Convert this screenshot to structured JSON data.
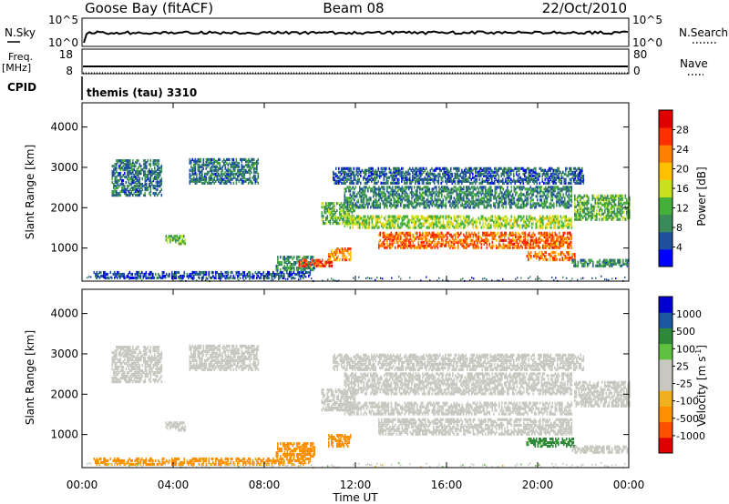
{
  "header": {
    "station": "Goose Bay (fitACF)",
    "beam": "Beam 08",
    "date": "22/Oct/2010",
    "cpid_label": "CPID",
    "cpid_value": "themis (tau) 3310"
  },
  "strip_labels": {
    "nsky": "N.Sky",
    "nsky_ticks": [
      "10^5",
      "10^0"
    ],
    "nsearch": "N.Search",
    "nsearch_ticks": [
      "10^5",
      "10^0"
    ],
    "freq": "Freq.",
    "freq_unit": "[MHz]",
    "freq_ticks": [
      "18",
      "8"
    ],
    "nave": "Nave",
    "nave_ticks": [
      "80",
      "0"
    ]
  },
  "colors": {
    "power_scale": [
      "#0000ff",
      "#2150a0",
      "#3a8a5a",
      "#44b03a",
      "#c8e020",
      "#ffc000",
      "#ff8000",
      "#ff3000",
      "#e00000"
    ],
    "velocity_scale": [
      "#e00000",
      "#ff5000",
      "#ff9000",
      "#f0b020",
      "#c8c8c0",
      "#c8c8c0",
      "#60c040",
      "#2e8a3a",
      "#1c56a0",
      "#0000d0"
    ]
  },
  "chart_data": [
    {
      "type": "heatmap",
      "title": "",
      "xlabel": "Time UT",
      "ylabel": "Slant Range [km]",
      "x_ticks": [
        "00:00",
        "04:00",
        "08:00",
        "12:00",
        "16:00",
        "20:00",
        "00:00"
      ],
      "y_ticks": [
        "1000",
        "2000",
        "3000",
        "4000"
      ],
      "xlim": [
        0,
        24
      ],
      "ylim": [
        180,
        4600
      ],
      "colorbar_label": "Power [dB]",
      "colorbar_ticks": [
        "4",
        "8",
        "12",
        "16",
        "20",
        "24",
        "28"
      ],
      "value_range": [
        0,
        30
      ],
      "regions": [
        {
          "t": [
            1.3,
            3.5
          ],
          "r": [
            2300,
            3200
          ],
          "v": 7
        },
        {
          "t": [
            4.7,
            7.7
          ],
          "r": [
            2600,
            3200
          ],
          "v": 7
        },
        {
          "t": [
            3.6,
            4.5
          ],
          "r": [
            1100,
            1300
          ],
          "v": 11
        },
        {
          "t": [
            0.5,
            10.0
          ],
          "r": [
            250,
            400
          ],
          "v": 5
        },
        {
          "t": [
            8.5,
            10.2
          ],
          "r": [
            450,
            800
          ],
          "v": 9
        },
        {
          "t": [
            9.5,
            11.0
          ],
          "r": [
            550,
            700
          ],
          "v": 24
        },
        {
          "t": [
            10.8,
            11.8
          ],
          "r": [
            700,
            1000
          ],
          "v": 21
        },
        {
          "t": [
            10.5,
            12.0
          ],
          "r": [
            1600,
            2100
          ],
          "v": 11
        },
        {
          "t": [
            11.5,
            21.5
          ],
          "r": [
            1500,
            1800
          ],
          "v": 14
        },
        {
          "t": [
            13.0,
            21.5
          ],
          "r": [
            1000,
            1400
          ],
          "v": 23
        },
        {
          "t": [
            11.5,
            21.5
          ],
          "r": [
            2000,
            2500
          ],
          "v": 8
        },
        {
          "t": [
            19.5,
            21.6
          ],
          "r": [
            700,
            900
          ],
          "v": 22
        },
        {
          "t": [
            21.6,
            24.0
          ],
          "r": [
            1700,
            2300
          ],
          "v": 11
        },
        {
          "t": [
            11.0,
            22.0
          ],
          "r": [
            2600,
            3000
          ],
          "v": 6
        },
        {
          "t": [
            21.5,
            24.0
          ],
          "r": [
            550,
            700
          ],
          "v": 9
        }
      ]
    },
    {
      "type": "heatmap",
      "title": "",
      "xlabel": "Time UT",
      "ylabel": "Slant Range [km]",
      "x_ticks": [
        "00:00",
        "04:00",
        "08:00",
        "12:00",
        "16:00",
        "20:00",
        "00:00"
      ],
      "y_ticks": [
        "1000",
        "2000",
        "3000",
        "4000"
      ],
      "xlim": [
        0,
        24
      ],
      "ylim": [
        180,
        4600
      ],
      "colorbar_label": "Velocity [m s^-1]",
      "colorbar_ticks": [
        "-1000",
        "-500",
        "-100",
        "-25",
        "25",
        "100",
        "500",
        "1000"
      ],
      "value_range": [
        -1200,
        1200
      ],
      "regions": [
        {
          "t": [
            1.3,
            3.5
          ],
          "r": [
            2300,
            3200
          ],
          "v": 0
        },
        {
          "t": [
            4.7,
            7.7
          ],
          "r": [
            2600,
            3200
          ],
          "v": 0
        },
        {
          "t": [
            3.6,
            4.5
          ],
          "r": [
            1100,
            1300
          ],
          "v": 0
        },
        {
          "t": [
            0.5,
            10.0
          ],
          "r": [
            250,
            400
          ],
          "v": -150
        },
        {
          "t": [
            8.5,
            10.2
          ],
          "r": [
            450,
            800
          ],
          "v": -160
        },
        {
          "t": [
            10.8,
            11.8
          ],
          "r": [
            700,
            1000
          ],
          "v": -160
        },
        {
          "t": [
            10.5,
            12.0
          ],
          "r": [
            1600,
            2100
          ],
          "v": 0
        },
        {
          "t": [
            11.5,
            21.5
          ],
          "r": [
            1500,
            1800
          ],
          "v": 0
        },
        {
          "t": [
            13.0,
            21.5
          ],
          "r": [
            1000,
            1400
          ],
          "v": 0
        },
        {
          "t": [
            11.5,
            21.5
          ],
          "r": [
            2000,
            2500
          ],
          "v": 0
        },
        {
          "t": [
            19.5,
            21.6
          ],
          "r": [
            700,
            900
          ],
          "v": 150
        },
        {
          "t": [
            21.6,
            24.0
          ],
          "r": [
            1700,
            2300
          ],
          "v": 0
        },
        {
          "t": [
            11.0,
            22.0
          ],
          "r": [
            2600,
            3000
          ],
          "v": 0
        },
        {
          "t": [
            21.5,
            24.0
          ],
          "r": [
            550,
            700
          ],
          "v": 0
        }
      ]
    }
  ]
}
